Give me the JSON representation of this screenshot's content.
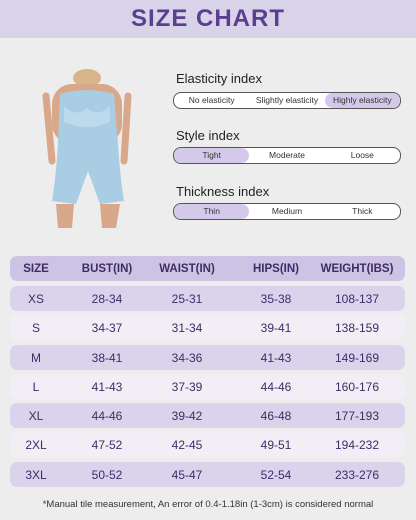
{
  "header": {
    "title": "SIZE CHART"
  },
  "indices": [
    {
      "title": "Elasticity index",
      "options": [
        "No elasticity",
        "Slightly elasticity",
        "Highly elasticity"
      ]
    },
    {
      "title": "Style index",
      "options": [
        "Tight",
        "Moderate",
        "Loose"
      ]
    },
    {
      "title": "Thickness index",
      "options": [
        "Thin",
        "Medium",
        "Thick"
      ]
    }
  ],
  "table": {
    "columns": [
      "SIZE",
      "BUST(IN)",
      "WAIST(IN)",
      "HIPS(IN)",
      "WEIGHT(IBS)"
    ],
    "rows": [
      [
        "XS",
        "28-34",
        "25-31",
        "35-38",
        "108-137"
      ],
      [
        "S",
        "34-37",
        "31-34",
        "39-41",
        "138-159"
      ],
      [
        "M",
        "38-41",
        "34-36",
        "41-43",
        "149-169"
      ],
      [
        "L",
        "41-43",
        "37-39",
        "44-46",
        "160-176"
      ],
      [
        "XL",
        "44-46",
        "39-42",
        "46-48",
        "177-193"
      ],
      [
        "2XL",
        "47-52",
        "42-45",
        "49-51",
        "194-232"
      ],
      [
        "3XL",
        "50-52",
        "45-47",
        "52-54",
        "233-276"
      ]
    ]
  },
  "footer": {
    "note": "*Manual tile measurement, An error of 0.4-1.18in (1-3cm) is considered normal"
  }
}
